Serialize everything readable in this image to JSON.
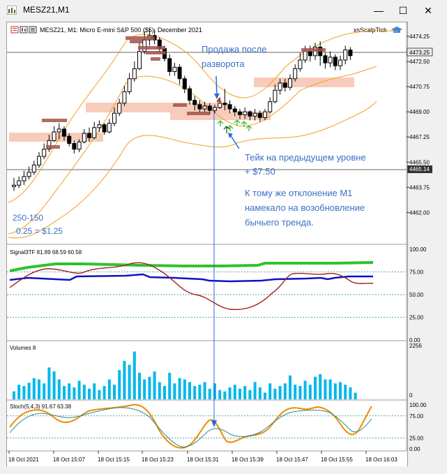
{
  "window": {
    "title": "MESZ21,M1",
    "minimize": "—",
    "maximize": "☐",
    "close": "✕"
  },
  "chart_header": {
    "symbol_info": "MESZ21, M1:  Micro E-mini S&P 500 ($5): December 2021",
    "ea_name": "xsScalpTick"
  },
  "annotations": {
    "sell_note_line1": "Продажа после",
    "sell_note_line2": "разворота",
    "take_line1": "Тейк на предыдущем уровне",
    "take_line2": "+ $7.50",
    "dev_line1": "К тому же отклонение М1",
    "dev_line2": "намекало на возобновление",
    "dev_line3": "бычьего тренда.",
    "range_note": "250-150",
    "tick_note": "0.25 = $1.25"
  },
  "price_axis": {
    "ticks": [
      "4474.25",
      "4472.50",
      "4470.75",
      "4469.00",
      "4467.25",
      "4465.50",
      "4463.75",
      "4462.00"
    ],
    "current_price": "4473.25",
    "line_price": "4465.14"
  },
  "indicators": {
    "signal": {
      "label": "Signal3TF 81.89 68.59 60.58",
      "ticks": [
        "100.00",
        "75.00",
        "50.00",
        "25.00",
        "0.00"
      ]
    },
    "volumes": {
      "label": "Volumes 8",
      "ticks": [
        "2256",
        "0"
      ]
    },
    "stoch": {
      "label": "Stoch(5,4,3) 91.67 63.38",
      "ticks": [
        "100.00",
        "75.00",
        "25.00",
        "0.00"
      ]
    }
  },
  "time_axis": [
    "18 Oct 2021",
    "18 Oct 15:07",
    "18 Oct 15:15",
    "18 Oct 15:23",
    "18 Oct 15:31",
    "18 Oct 15:39",
    "18 Oct 15:47",
    "18 Oct 15:55",
    "18 Oct 16:03"
  ],
  "colors": {
    "bull": "#000000",
    "bear": "#000000",
    "zone_fill": "#f7c3b0",
    "level_mark": "#a0524a",
    "bands": "#f0a020",
    "signal_green": "#2ec22e",
    "signal_blue": "#1010c8",
    "signal_red": "#a02020",
    "stoch_main": "#f08a00",
    "stoch_signal": "#2a8a8a",
    "volume": "#00b8ea",
    "arrow": "#2a6ad8",
    "note_text": "#3a6fc8"
  }
}
